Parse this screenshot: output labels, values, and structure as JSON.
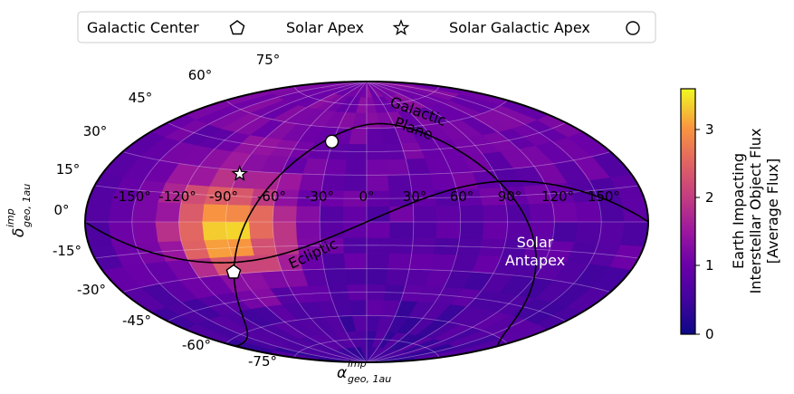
{
  "chart_data": {
    "type": "heatmap",
    "projection": "aitoff",
    "x_ticks": [
      "-150°",
      "-120°",
      "-90°",
      "-60°",
      "-30°",
      "0°",
      "30°",
      "60°",
      "90°",
      "120°",
      "150°"
    ],
    "y_ticks": [
      "75°",
      "60°",
      "45°",
      "30°",
      "15°",
      "0°",
      "-15°",
      "-30°",
      "-45°",
      "-60°",
      "-75°"
    ],
    "xlabel": "α",
    "xlabel_sup": "imp",
    "xlabel_sub": "geo, 1au",
    "ylabel": "δ",
    "ylabel_sup": "imp",
    "ylabel_sub": "geo, 1au",
    "grid": true,
    "colorbar": {
      "label_lines": [
        "Earth Impacting",
        "Interstellar Object Flux",
        "[Average Flux]"
      ],
      "ticks": [
        "0",
        "1",
        "2",
        "3"
      ],
      "range": [
        0,
        3.6
      ],
      "colormap": "plasma"
    },
    "legend": {
      "placement": "top",
      "items": [
        {
          "label": "Galactic Center",
          "marker": "pentagon"
        },
        {
          "label": "Solar Apex",
          "marker": "star"
        },
        {
          "label": "Solar Galactic Apex",
          "marker": "circle"
        }
      ]
    },
    "points": [
      {
        "name": "Galactic Center",
        "lon": -94,
        "lat": -29
      },
      {
        "name": "Solar Apex",
        "lon": -89,
        "lat": 28
      },
      {
        "name": "Solar Galactic Apex",
        "lon": -31,
        "lat": 51
      }
    ],
    "curve_labels": {
      "galactic": [
        "Galactic",
        "Plane"
      ],
      "ecliptic": "Ecliptic",
      "antapex": [
        "Solar",
        "Antapex"
      ]
    },
    "flux_model": {
      "hot_center_lon": -88,
      "hot_center_lat": -4,
      "peak": 3.6,
      "background_south": 0.5,
      "background_north": 1.2
    }
  }
}
